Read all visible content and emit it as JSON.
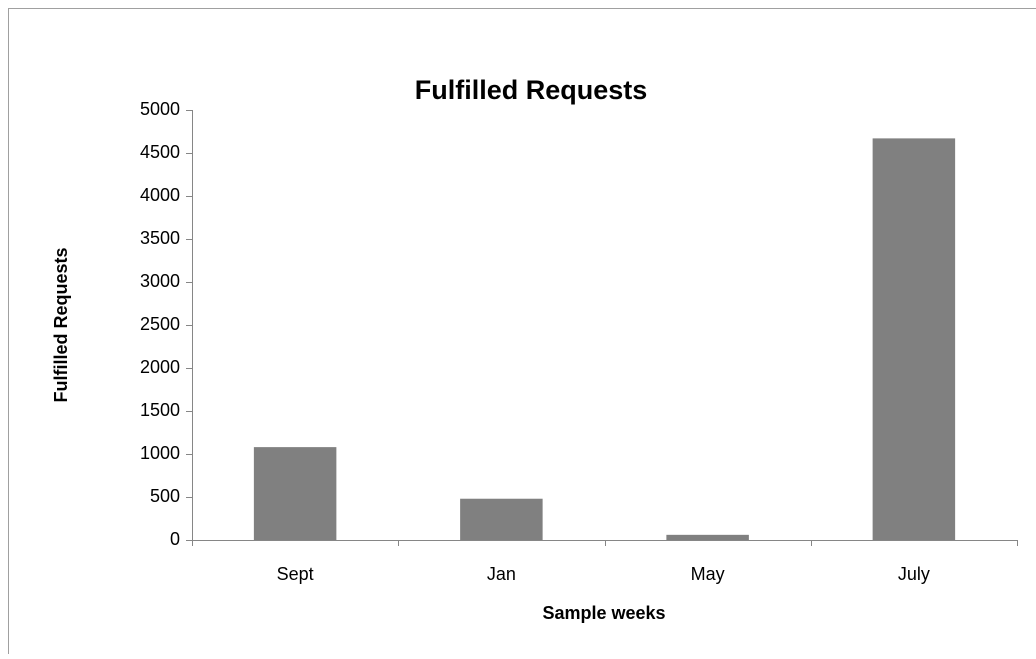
{
  "chart_data": {
    "type": "bar",
    "title": "Fulfilled Requests",
    "x_label": "Sample weeks",
    "y_label": "Fulfilled Requests",
    "categories": [
      "Sept",
      "Jan",
      "May",
      "July"
    ],
    "values": [
      1080,
      480,
      60,
      4670
    ],
    "color": "#808080",
    "ylim": [
      0,
      5000
    ],
    "yticks": [
      0,
      500,
      1000,
      1500,
      2000,
      2500,
      3000,
      3500,
      4000,
      4500,
      5000
    ],
    "grid": false
  }
}
